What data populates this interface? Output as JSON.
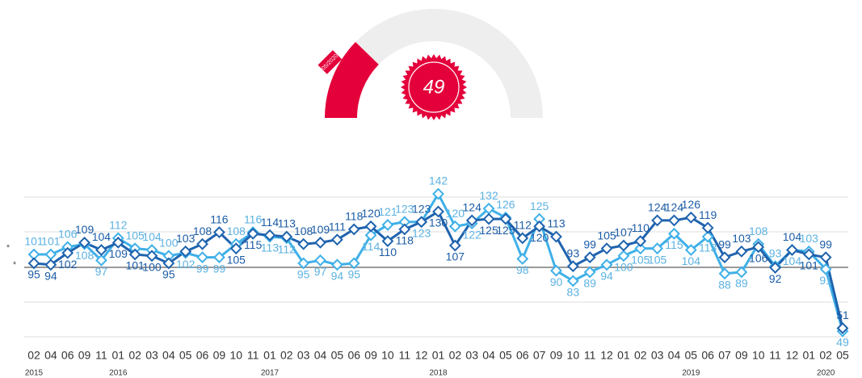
{
  "chart_data": [
    {
      "type": "gauge",
      "value": 49,
      "range": [
        0,
        200
      ],
      "date_label": "05/2020",
      "color": "#e4003a",
      "track_color": "#eeeeee"
    },
    {
      "type": "line",
      "categories": [
        "02",
        "04",
        "06",
        "09",
        "11",
        "01",
        "02",
        "03",
        "04",
        "05",
        "06",
        "09",
        "10",
        "11",
        "01",
        "02",
        "03",
        "04",
        "05",
        "06",
        "09",
        "10",
        "11",
        "12",
        "01",
        "02",
        "03",
        "04",
        "05",
        "06",
        "07",
        "09",
        "10",
        "11",
        "12",
        "01",
        "02",
        "03",
        "04",
        "05",
        "06",
        "07",
        "09",
        "10",
        "11",
        "12",
        "01",
        "02",
        "05"
      ],
      "years": [
        2015,
        null,
        null,
        null,
        null,
        2016,
        null,
        null,
        null,
        null,
        null,
        null,
        null,
        null,
        2017,
        null,
        null,
        null,
        null,
        null,
        null,
        null,
        null,
        null,
        2018,
        null,
        null,
        null,
        null,
        null,
        null,
        null,
        null,
        null,
        null,
        null,
        null,
        null,
        null,
        2019,
        null,
        null,
        null,
        null,
        null,
        null,
        null,
        2020,
        null
      ],
      "series": [
        {
          "color": "#3fb0e8",
          "label_color": "#5cb2e2",
          "values": [
            101,
            101,
            106,
            108,
            97,
            112,
            105,
            104,
            100,
            102,
            99,
            99,
            108,
            116,
            113,
            112,
            95,
            97,
            94,
            95,
            114,
            121,
            123,
            123,
            142,
            120,
            122,
            132,
            126,
            98,
            125,
            90,
            83,
            89,
            94,
            100,
            105,
            105,
            115,
            104,
            113,
            88,
            89,
            108,
            93,
            104,
            103,
            91,
            49
          ]
        },
        {
          "color": "#1f63ae",
          "label_color": "#1b5ca6",
          "values": [
            95,
            94,
            102,
            109,
            104,
            109,
            101,
            100,
            95,
            103,
            108,
            116,
            105,
            115,
            114,
            113,
            108,
            109,
            111,
            118,
            120,
            110,
            118,
            123,
            130,
            107,
            124,
            125,
            125,
            112,
            120,
            113,
            93,
            99,
            105,
            107,
            110,
            124,
            124,
            126,
            119,
            99,
            103,
            106,
            92,
            104,
            101,
            99,
            51
          ]
        }
      ],
      "ylim": [
        40,
        150
      ],
      "y_axis_notes": [
        "*",
        "*"
      ]
    }
  ]
}
